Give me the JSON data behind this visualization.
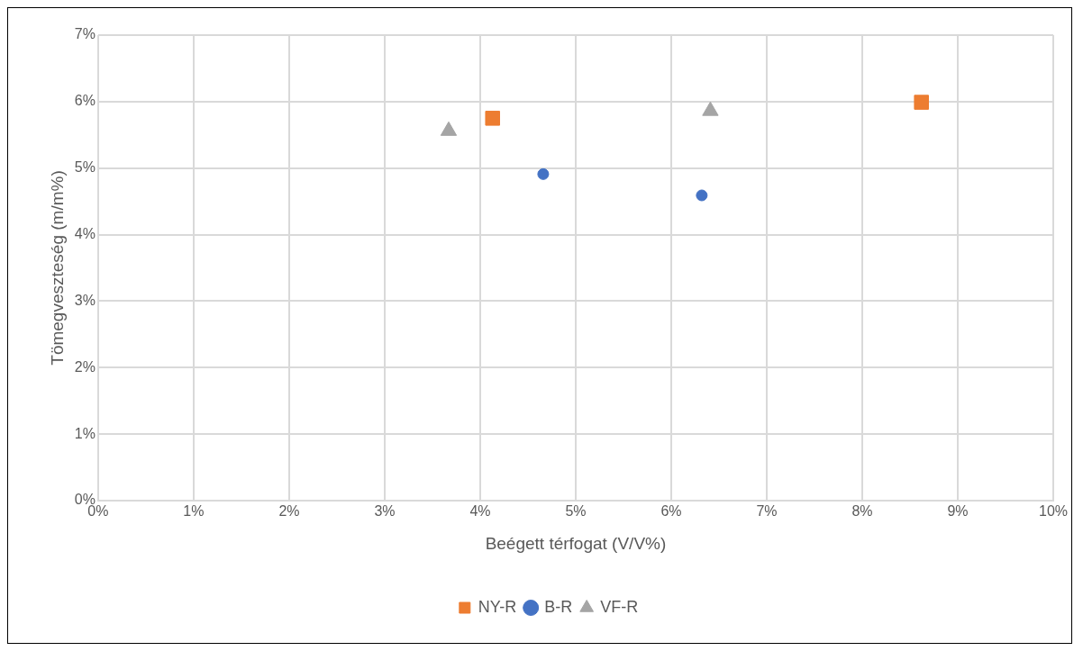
{
  "chart_data": {
    "type": "scatter",
    "xlabel": "Beégett térfogat (V/V%)",
    "ylabel": "Tömegveszteség (m/m%)",
    "xlim": [
      0,
      10
    ],
    "ylim": [
      0,
      7
    ],
    "xticks": [
      {
        "value": 0,
        "label": "0%"
      },
      {
        "value": 1,
        "label": "1%"
      },
      {
        "value": 2,
        "label": "2%"
      },
      {
        "value": 3,
        "label": "3%"
      },
      {
        "value": 4,
        "label": "4%"
      },
      {
        "value": 5,
        "label": "5%"
      },
      {
        "value": 6,
        "label": "6%"
      },
      {
        "value": 7,
        "label": "7%"
      },
      {
        "value": 8,
        "label": "8%"
      },
      {
        "value": 9,
        "label": "9%"
      },
      {
        "value": 10,
        "label": "10%"
      }
    ],
    "yticks": [
      {
        "value": 0,
        "label": "0%"
      },
      {
        "value": 1,
        "label": "1%"
      },
      {
        "value": 2,
        "label": "2%"
      },
      {
        "value": 3,
        "label": "3%"
      },
      {
        "value": 4,
        "label": "4%"
      },
      {
        "value": 5,
        "label": "5%"
      },
      {
        "value": 6,
        "label": "6%"
      },
      {
        "value": 7,
        "label": "7%"
      }
    ],
    "grid": true,
    "legend": "bottom",
    "series": [
      {
        "name": "NY-R",
        "color": "#ed7d31",
        "marker": "square",
        "x": [
          4.13,
          8.62
        ],
        "values": [
          5.75,
          5.99
        ]
      },
      {
        "name": "B-R",
        "color": "#4472c4",
        "marker": "circle",
        "x": [
          4.66,
          6.32
        ],
        "values": [
          4.91,
          4.59
        ]
      },
      {
        "name": "VF-R",
        "color": "#a5a5a5",
        "marker": "triangle",
        "x": [
          3.67,
          6.41
        ],
        "values": [
          5.56,
          5.86
        ]
      }
    ]
  }
}
